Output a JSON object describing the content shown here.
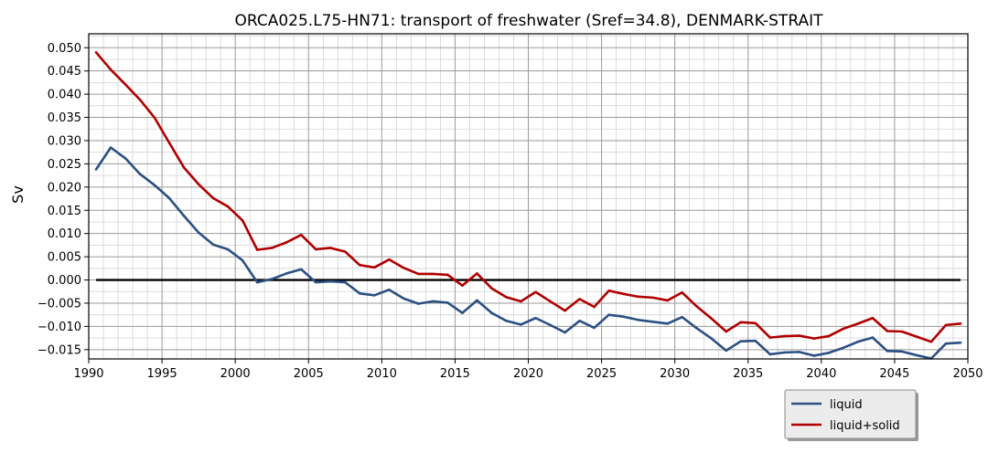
{
  "chart_data": {
    "type": "line",
    "title": "ORCA025.L75-HN71: transport of freshwater (Sref=34.8), DENMARK-STRAIT",
    "xlabel": "",
    "ylabel": "Sv",
    "xlim": [
      1990,
      2050
    ],
    "ylim": [
      -0.017,
      0.053
    ],
    "x_ticks": [
      1990,
      1995,
      2000,
      2005,
      2010,
      2015,
      2020,
      2025,
      2030,
      2035,
      2040,
      2045,
      2050
    ],
    "y_ticks": [
      -0.015,
      -0.01,
      -0.005,
      0.0,
      0.005,
      0.01,
      0.015,
      0.02,
      0.025,
      0.03,
      0.035,
      0.04,
      0.045,
      0.05
    ],
    "x_tick_labels": [
      "1990",
      "1995",
      "2000",
      "2005",
      "2010",
      "2015",
      "2020",
      "2025",
      "2030",
      "2035",
      "2040",
      "2045",
      "2050"
    ],
    "y_tick_labels": [
      "−0.015",
      "−0.010",
      "−0.005",
      "0.000",
      "0.005",
      "0.010",
      "0.015",
      "0.020",
      "0.025",
      "0.030",
      "0.035",
      "0.040",
      "0.045",
      "0.050"
    ],
    "grid": true,
    "zero_line": 0.0,
    "legend_position": "below-right",
    "x": [
      1990.5,
      1991.5,
      1992.5,
      1993.5,
      1994.5,
      1995.5,
      1996.5,
      1997.5,
      1998.5,
      1999.5,
      2000.5,
      2001.5,
      2002.5,
      2003.5,
      2004.5,
      2005.5,
      2006.5,
      2007.5,
      2008.5,
      2009.5,
      2010.5,
      2011.5,
      2012.5,
      2013.5,
      2014.5,
      2015.5,
      2016.5,
      2017.5,
      2018.5,
      2019.5,
      2020.5,
      2021.5,
      2022.5,
      2023.5,
      2024.5,
      2025.5,
      2026.5,
      2027.5,
      2028.5,
      2029.5,
      2030.5,
      2031.5,
      2032.5,
      2033.5,
      2034.5,
      2035.5,
      2036.5,
      2037.5,
      2038.5,
      2039.5,
      2040.5,
      2041.5,
      2042.5,
      2043.5,
      2044.5,
      2045.5,
      2046.5,
      2047.5,
      2048.5,
      2049.5
    ],
    "series": [
      {
        "name": "liquid",
        "color": "#2b5082",
        "values": [
          0.0238,
          0.0285,
          0.0262,
          0.0228,
          0.0204,
          0.0176,
          0.0138,
          0.0102,
          0.0076,
          0.0066,
          0.0042,
          -0.0005,
          0.0002,
          0.0014,
          0.0023,
          -0.0005,
          -0.0003,
          -0.0005,
          -0.0029,
          -0.0033,
          -0.0021,
          -0.004,
          -0.0051,
          -0.0046,
          -0.0049,
          -0.0071,
          -0.0044,
          -0.0071,
          -0.0088,
          -0.0096,
          -0.0082,
          -0.0097,
          -0.0113,
          -0.0088,
          -0.0103,
          -0.0075,
          -0.0079,
          -0.0086,
          -0.009,
          -0.0094,
          -0.008,
          -0.0104,
          -0.0126,
          -0.0152,
          -0.0132,
          -0.0131,
          -0.016,
          -0.0156,
          -0.0155,
          -0.0163,
          -0.0157,
          -0.0146,
          -0.0133,
          -0.0124,
          -0.0153,
          -0.0154,
          -0.0162,
          -0.0169,
          -0.0137,
          -0.0135
        ]
      },
      {
        "name": "liquid+solid",
        "color": "#b00000",
        "values": [
          0.049,
          0.0453,
          0.0421,
          0.0388,
          0.0349,
          0.0295,
          0.0242,
          0.0206,
          0.0176,
          0.0158,
          0.0128,
          0.0065,
          0.0069,
          0.0081,
          0.0097,
          0.0066,
          0.0069,
          0.0061,
          0.0032,
          0.0027,
          0.0044,
          0.0026,
          0.0013,
          0.0013,
          0.0011,
          -0.0012,
          0.0014,
          -0.0018,
          -0.0037,
          -0.0046,
          -0.0026,
          -0.0046,
          -0.0066,
          -0.0041,
          -0.0058,
          -0.0023,
          -0.003,
          -0.0036,
          -0.0038,
          -0.0044,
          -0.0027,
          -0.0057,
          -0.0083,
          -0.0111,
          -0.0091,
          -0.0093,
          -0.0124,
          -0.0121,
          -0.012,
          -0.0126,
          -0.0121,
          -0.0105,
          -0.0094,
          -0.0082,
          -0.011,
          -0.0111,
          -0.0122,
          -0.0133,
          -0.0097,
          -0.0094
        ]
      }
    ]
  }
}
